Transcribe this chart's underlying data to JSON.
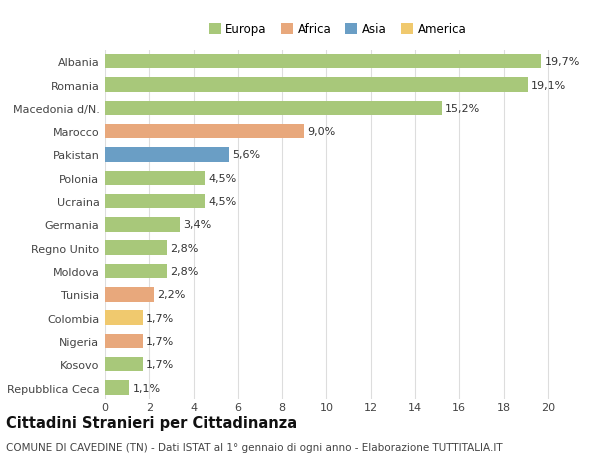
{
  "categories": [
    "Albania",
    "Romania",
    "Macedonia d/N.",
    "Marocco",
    "Pakistan",
    "Polonia",
    "Ucraina",
    "Germania",
    "Regno Unito",
    "Moldova",
    "Tunisia",
    "Colombia",
    "Nigeria",
    "Kosovo",
    "Repubblica Ceca"
  ],
  "values": [
    19.7,
    19.1,
    15.2,
    9.0,
    5.6,
    4.5,
    4.5,
    3.4,
    2.8,
    2.8,
    2.2,
    1.7,
    1.7,
    1.7,
    1.1
  ],
  "labels": [
    "19,7%",
    "19,1%",
    "15,2%",
    "9,0%",
    "5,6%",
    "4,5%",
    "4,5%",
    "3,4%",
    "2,8%",
    "2,8%",
    "2,2%",
    "1,7%",
    "1,7%",
    "1,7%",
    "1,1%"
  ],
  "bar_colors": [
    "#a8c87a",
    "#a8c87a",
    "#a8c87a",
    "#e8a87c",
    "#6a9ec5",
    "#a8c87a",
    "#a8c87a",
    "#a8c87a",
    "#a8c87a",
    "#a8c87a",
    "#e8a87c",
    "#f0c96e",
    "#e8a87c",
    "#a8c87a",
    "#a8c87a"
  ],
  "legend_labels": [
    "Europa",
    "Africa",
    "Asia",
    "America"
  ],
  "legend_colors": [
    "#a8c87a",
    "#e8a87c",
    "#6a9ec5",
    "#f0c96e"
  ],
  "title": "Cittadini Stranieri per Cittadinanza",
  "subtitle": "COMUNE DI CAVEDINE (TN) - Dati ISTAT al 1° gennaio di ogni anno - Elaborazione TUTTITALIA.IT",
  "xlim": [
    0,
    21
  ],
  "xticks": [
    0,
    2,
    4,
    6,
    8,
    10,
    12,
    14,
    16,
    18,
    20
  ],
  "background_color": "#ffffff",
  "grid_color": "#dddddd",
  "bar_height": 0.62,
  "label_fontsize": 8,
  "tick_fontsize": 8,
  "title_fontsize": 10.5,
  "subtitle_fontsize": 7.5
}
